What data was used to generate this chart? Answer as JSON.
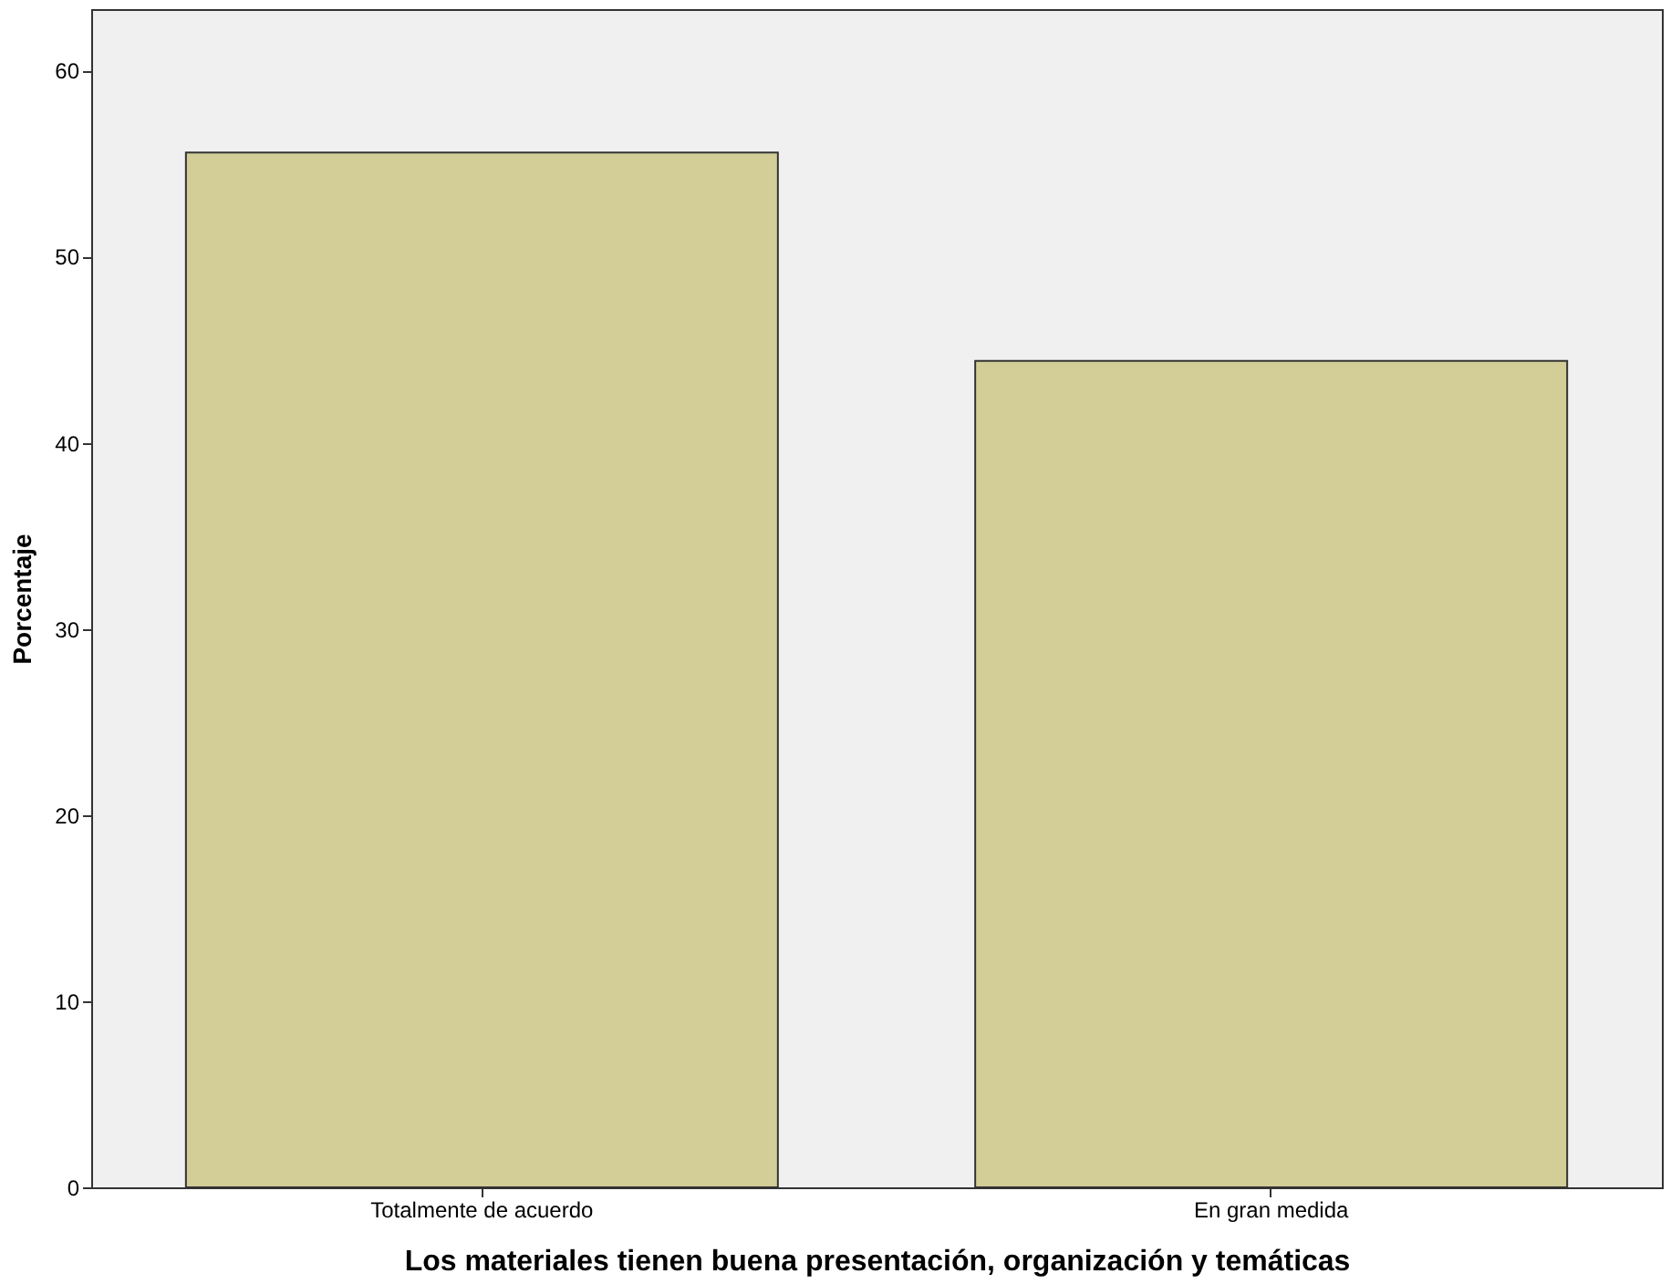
{
  "chart_data": {
    "type": "bar",
    "xlabel": "Los materiales tienen buena presentación, organización y temáticas",
    "ylabel": "Porcentaje",
    "categories": [
      "Totalmente de acuerdo",
      "En gran medida"
    ],
    "values": [
      55.6,
      44.4
    ],
    "color": "#d3ce97",
    "ylim": [
      0,
      63.3
    ],
    "yticks": [
      0,
      10,
      20,
      30,
      40,
      50,
      60
    ]
  }
}
